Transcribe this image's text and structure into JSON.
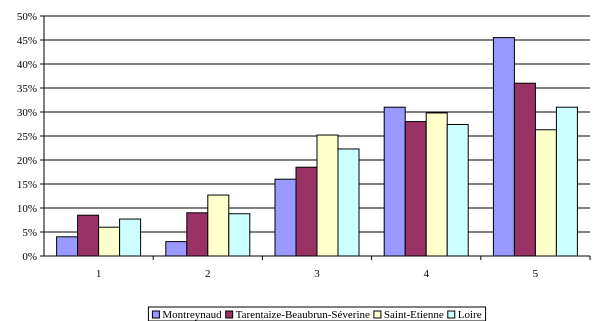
{
  "chart_data": {
    "type": "bar",
    "categories": [
      "1",
      "2",
      "3",
      "4",
      "5"
    ],
    "series": [
      {
        "name": "Montreynaud",
        "color": "#9999ff",
        "values": [
          4,
          3,
          16,
          31,
          45.5
        ]
      },
      {
        "name": "Tarentaize-Beaubrun-Séverine",
        "color": "#993366",
        "values": [
          8.5,
          9,
          18.5,
          28,
          36
        ]
      },
      {
        "name": "Saint-Etienne",
        "color": "#ffffcc",
        "values": [
          6,
          12.7,
          25.2,
          29.8,
          26.3
        ]
      },
      {
        "name": "Loire",
        "color": "#ccffff",
        "values": [
          7.7,
          8.8,
          22.3,
          27.4,
          31
        ]
      }
    ],
    "ylim": [
      0,
      50
    ],
    "ytick_step": 5,
    "ytick_labels": [
      "0%",
      "5%",
      "10%",
      "15%",
      "20%",
      "25%",
      "30%",
      "35%",
      "40%",
      "45%",
      "50%"
    ],
    "title": "",
    "xlabel": "",
    "ylabel": "",
    "grid": true,
    "legend_position": "bottom"
  }
}
